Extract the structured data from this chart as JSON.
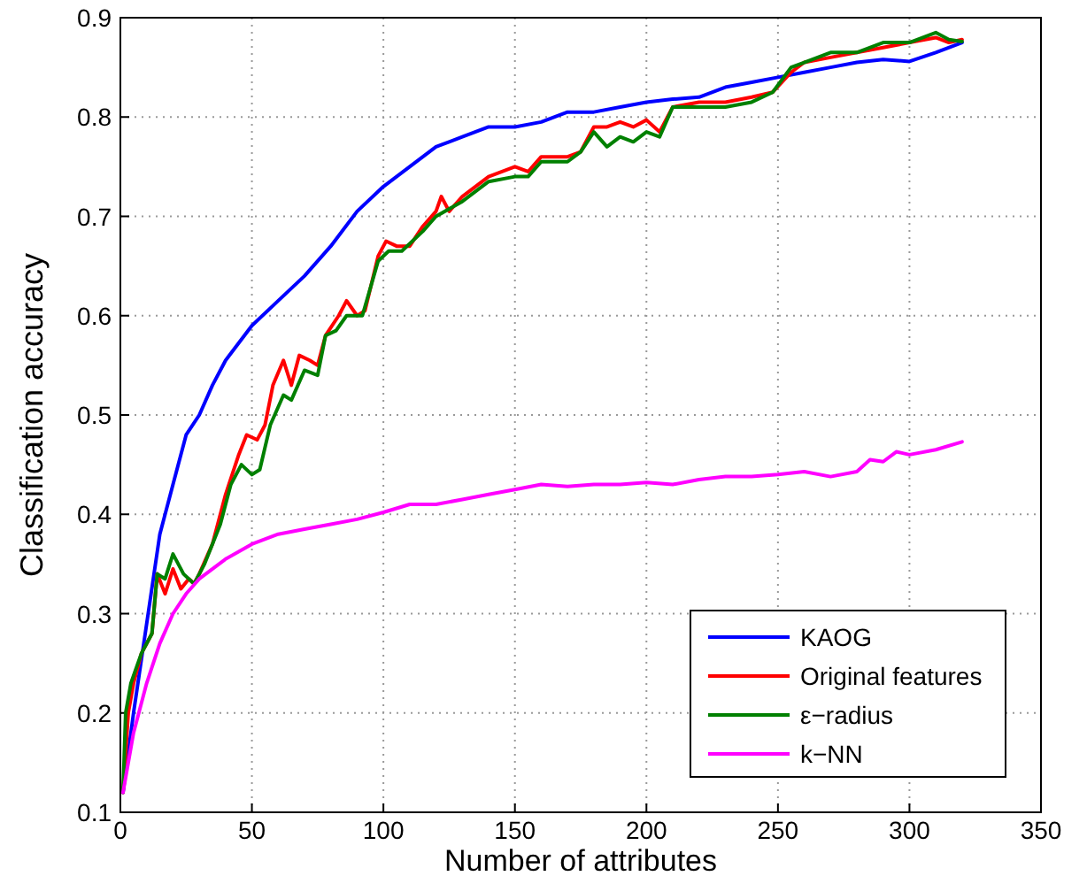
{
  "chart_data": {
    "type": "line",
    "xlabel": "Number of attributes",
    "ylabel": "Classification accuracy",
    "xlim": [
      0,
      350
    ],
    "ylim": [
      0.1,
      0.9
    ],
    "xticks": [
      0,
      50,
      100,
      150,
      200,
      250,
      300,
      350
    ],
    "yticks": [
      0.1,
      0.2,
      0.3,
      0.4,
      0.5,
      0.6,
      0.7,
      0.8,
      0.9
    ],
    "grid": true,
    "legend": "bottom right",
    "line_style": "solid",
    "marker": "none",
    "series": [
      {
        "name": "KAOG",
        "color": "#0000ff",
        "x": [
          1,
          5,
          10,
          15,
          20,
          25,
          30,
          35,
          40,
          50,
          60,
          70,
          80,
          90,
          100,
          110,
          120,
          130,
          140,
          150,
          160,
          170,
          180,
          190,
          200,
          210,
          220,
          230,
          240,
          250,
          260,
          270,
          280,
          290,
          300,
          310,
          320
        ],
        "values": [
          0.12,
          0.2,
          0.29,
          0.38,
          0.43,
          0.48,
          0.5,
          0.53,
          0.555,
          0.59,
          0.615,
          0.64,
          0.67,
          0.705,
          0.73,
          0.75,
          0.77,
          0.78,
          0.79,
          0.79,
          0.795,
          0.805,
          0.805,
          0.81,
          0.815,
          0.818,
          0.82,
          0.83,
          0.835,
          0.84,
          0.845,
          0.85,
          0.855,
          0.858,
          0.856,
          0.865,
          0.875
        ]
      },
      {
        "name": "Original features",
        "color": "#ff0000",
        "x": [
          1,
          3,
          5,
          8,
          12,
          14,
          17,
          20,
          23,
          26,
          28,
          30,
          35,
          40,
          45,
          48,
          52,
          55,
          58,
          62,
          65,
          68,
          72,
          75,
          78,
          83,
          86,
          90,
          93,
          98,
          101,
          105,
          110,
          115,
          120,
          122,
          125,
          130,
          140,
          150,
          155,
          160,
          170,
          175,
          180,
          185,
          190,
          195,
          200,
          205,
          210,
          220,
          230,
          240,
          248,
          255,
          260,
          270,
          280,
          290,
          300,
          310,
          315,
          320
        ],
        "values": [
          0.12,
          0.2,
          0.23,
          0.26,
          0.28,
          0.34,
          0.32,
          0.345,
          0.325,
          0.335,
          0.33,
          0.34,
          0.37,
          0.42,
          0.46,
          0.48,
          0.475,
          0.49,
          0.53,
          0.555,
          0.53,
          0.56,
          0.555,
          0.55,
          0.58,
          0.6,
          0.615,
          0.6,
          0.605,
          0.66,
          0.675,
          0.67,
          0.67,
          0.69,
          0.705,
          0.72,
          0.705,
          0.72,
          0.74,
          0.75,
          0.745,
          0.76,
          0.76,
          0.765,
          0.79,
          0.79,
          0.795,
          0.79,
          0.797,
          0.785,
          0.81,
          0.815,
          0.815,
          0.82,
          0.825,
          0.845,
          0.855,
          0.86,
          0.865,
          0.87,
          0.875,
          0.88,
          0.875,
          0.878
        ]
      },
      {
        "name": "ε−radius",
        "color": "#008000",
        "x": [
          1,
          2,
          4,
          8,
          12,
          14,
          17,
          20,
          24,
          28,
          32,
          38,
          42,
          46,
          50,
          53,
          57,
          62,
          65,
          70,
          75,
          78,
          82,
          86,
          92,
          98,
          102,
          107,
          115,
          120,
          130,
          140,
          150,
          155,
          160,
          170,
          175,
          180,
          185,
          190,
          195,
          200,
          205,
          210,
          220,
          230,
          240,
          248,
          255,
          260,
          270,
          280,
          290,
          300,
          310,
          315,
          320
        ],
        "values": [
          0.12,
          0.2,
          0.23,
          0.26,
          0.28,
          0.34,
          0.335,
          0.36,
          0.34,
          0.33,
          0.35,
          0.39,
          0.43,
          0.45,
          0.44,
          0.445,
          0.49,
          0.52,
          0.515,
          0.545,
          0.54,
          0.58,
          0.585,
          0.6,
          0.6,
          0.655,
          0.665,
          0.665,
          0.685,
          0.7,
          0.715,
          0.735,
          0.74,
          0.74,
          0.755,
          0.755,
          0.765,
          0.785,
          0.77,
          0.78,
          0.775,
          0.785,
          0.78,
          0.81,
          0.81,
          0.81,
          0.815,
          0.825,
          0.85,
          0.855,
          0.865,
          0.865,
          0.875,
          0.875,
          0.885,
          0.878,
          0.876
        ]
      },
      {
        "name": "k−NN",
        "color": "#ff00ff",
        "x": [
          1,
          5,
          10,
          15,
          20,
          25,
          30,
          40,
          50,
          60,
          70,
          80,
          90,
          100,
          110,
          120,
          130,
          140,
          150,
          160,
          170,
          180,
          190,
          200,
          210,
          220,
          230,
          240,
          250,
          260,
          270,
          280,
          285,
          290,
          295,
          300,
          310,
          320
        ],
        "values": [
          0.12,
          0.18,
          0.23,
          0.27,
          0.3,
          0.32,
          0.335,
          0.355,
          0.37,
          0.38,
          0.385,
          0.39,
          0.395,
          0.402,
          0.41,
          0.41,
          0.415,
          0.42,
          0.425,
          0.43,
          0.428,
          0.43,
          0.43,
          0.432,
          0.43,
          0.435,
          0.438,
          0.438,
          0.44,
          0.443,
          0.438,
          0.443,
          0.455,
          0.453,
          0.463,
          0.46,
          0.465,
          0.473
        ]
      }
    ]
  }
}
